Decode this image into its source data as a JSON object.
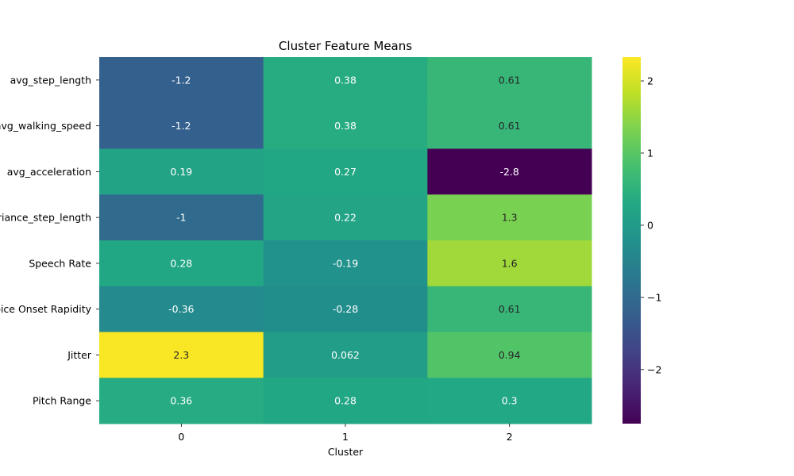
{
  "chart_data": {
    "type": "heatmap",
    "title": "Cluster Feature Means",
    "xlabel": "Cluster",
    "ylabel": "",
    "x_categories": [
      "0",
      "1",
      "2"
    ],
    "y_categories": [
      "avg_step_length",
      "avg_walking_speed",
      "avg_acceleration",
      "variance_step_length",
      "Speech Rate",
      "Voice Onset Rapidity",
      "Jitter",
      "Pitch Range"
    ],
    "values": [
      [
        -1.2,
        0.38,
        0.61
      ],
      [
        -1.2,
        0.38,
        0.61
      ],
      [
        0.19,
        0.27,
        -2.8
      ],
      [
        -1,
        0.22,
        1.3
      ],
      [
        0.28,
        -0.19,
        1.6
      ],
      [
        -0.36,
        -0.28,
        0.61
      ],
      [
        2.3,
        0.062,
        0.94
      ],
      [
        0.36,
        0.28,
        0.3
      ]
    ],
    "cell_labels": [
      [
        "-1.2",
        "0.38",
        "0.61"
      ],
      [
        "-1.2",
        "0.38",
        "0.61"
      ],
      [
        "0.19",
        "0.27",
        "-2.8"
      ],
      [
        "-1",
        "0.22",
        "1.3"
      ],
      [
        "0.28",
        "-0.19",
        "1.6"
      ],
      [
        "-0.36",
        "-0.28",
        "0.61"
      ],
      [
        "2.3",
        "0.062",
        "0.94"
      ],
      [
        "0.36",
        "0.28",
        "0.3"
      ]
    ],
    "colorscale": "viridis",
    "vmin": -2.75,
    "vmax": 2.33,
    "colorbar_ticks": [
      2,
      1,
      0,
      -1,
      -2
    ],
    "colorbar_tick_labels": [
      "2",
      "1",
      "0",
      "−1",
      "−2"
    ]
  }
}
